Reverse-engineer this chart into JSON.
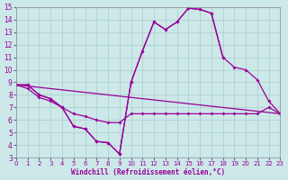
{
  "xlabel": "Windchill (Refroidissement éolien,°C)",
  "bg_color": "#cce8e8",
  "line_color": "#990099",
  "grid_color": "#aacccc",
  "xlim": [
    0,
    23
  ],
  "ylim": [
    3,
    15
  ],
  "xticks": [
    0,
    1,
    2,
    3,
    4,
    5,
    6,
    7,
    8,
    9,
    10,
    11,
    12,
    13,
    14,
    15,
    16,
    17,
    18,
    19,
    20,
    21,
    22,
    23
  ],
  "yticks": [
    3,
    4,
    5,
    6,
    7,
    8,
    9,
    10,
    11,
    12,
    13,
    14,
    15
  ],
  "lines": [
    {
      "x": [
        0,
        1,
        2,
        3,
        4,
        5,
        6,
        7,
        8,
        9,
        10,
        11,
        12,
        13,
        14,
        15,
        16,
        17,
        18
      ],
      "y": [
        8.8,
        8.8,
        8.0,
        7.7,
        7.0,
        5.5,
        5.3,
        4.3,
        4.2,
        3.3,
        9.0,
        11.5,
        13.8,
        13.2,
        13.8,
        14.9,
        14.8,
        14.5,
        11.0
      ]
    },
    {
      "x": [
        0,
        1,
        2,
        3,
        4,
        5,
        6,
        7,
        8,
        9,
        10,
        11,
        12,
        13,
        14,
        15,
        16,
        17,
        18,
        19,
        20,
        21,
        22,
        23
      ],
      "y": [
        8.8,
        8.5,
        7.8,
        7.5,
        7.0,
        6.5,
        6.3,
        6.0,
        5.8,
        5.8,
        6.5,
        6.5,
        6.5,
        6.5,
        6.5,
        6.5,
        6.5,
        6.5,
        6.5,
        6.5,
        6.5,
        6.5,
        7.0,
        6.5
      ]
    },
    {
      "x": [
        0,
        23
      ],
      "y": [
        8.8,
        6.5
      ]
    },
    {
      "x": [
        0,
        1,
        2,
        3,
        4,
        5,
        6,
        7,
        8,
        9,
        10,
        11,
        12,
        13,
        14,
        15,
        16,
        17,
        18,
        19,
        20,
        21,
        22,
        23
      ],
      "y": [
        8.8,
        8.8,
        8.0,
        7.7,
        7.0,
        5.5,
        5.3,
        4.3,
        4.2,
        3.3,
        9.0,
        11.5,
        13.8,
        13.2,
        13.8,
        14.9,
        14.8,
        14.5,
        11.0,
        10.2,
        10.0,
        9.2,
        7.5,
        6.5
      ]
    }
  ]
}
